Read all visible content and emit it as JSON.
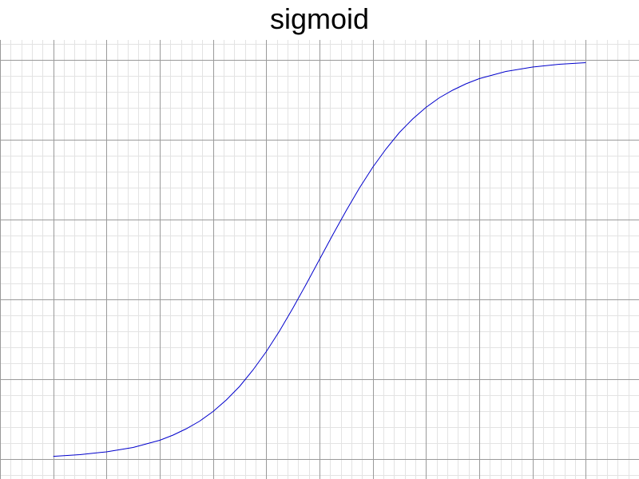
{
  "chart_data": {
    "type": "line",
    "title": "sigmoid",
    "xlabel": "",
    "ylabel": "",
    "xlim": [
      -6,
      6
    ],
    "ylim": [
      -0.05,
      1.05
    ],
    "grid": true,
    "series": [
      {
        "color": "#0000cc",
        "x": [
          -5,
          -4.5,
          -4,
          -3.5,
          -3,
          -2.75,
          -2.5,
          -2.25,
          -2,
          -1.75,
          -1.5,
          -1.25,
          -1,
          -0.75,
          -0.5,
          -0.25,
          0,
          0.25,
          0.5,
          0.75,
          1,
          1.25,
          1.5,
          1.75,
          2,
          2.25,
          2.5,
          2.75,
          3,
          3.5,
          4,
          4.5,
          5
        ],
        "y": [
          0.0067,
          0.011,
          0.018,
          0.029,
          0.047,
          0.06,
          0.076,
          0.095,
          0.119,
          0.148,
          0.182,
          0.223,
          0.269,
          0.321,
          0.378,
          0.438,
          0.5,
          0.562,
          0.622,
          0.679,
          0.731,
          0.777,
          0.818,
          0.852,
          0.881,
          0.905,
          0.924,
          0.94,
          0.953,
          0.971,
          0.982,
          0.989,
          0.993
        ]
      }
    ]
  }
}
